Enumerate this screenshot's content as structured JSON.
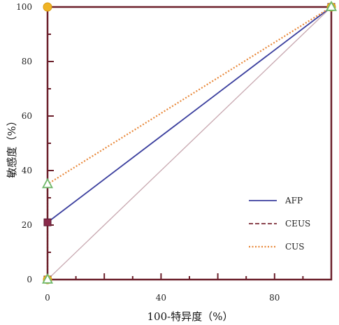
{
  "chart_data": {
    "type": "line",
    "xlabel": "100-特异度（%）",
    "ylabel": "敏感度（%）",
    "xlim": [
      0,
      100
    ],
    "ylim": [
      0,
      100
    ],
    "x_ticks": [
      "0",
      "40",
      "80"
    ],
    "y_ticks": [
      "0",
      "20",
      "40",
      "60",
      "80",
      "100"
    ],
    "grid": false,
    "legend_position": "lower-right",
    "reference_line": {
      "x": [
        0,
        100
      ],
      "y": [
        0,
        100
      ],
      "color": "#c8a8b0"
    },
    "series": [
      {
        "name": "AFP",
        "color": "#3b3f9e",
        "style": "solid",
        "marker": "square",
        "marker_color": "#8a2a4a",
        "points": [
          [
            0,
            0
          ],
          [
            0,
            21
          ],
          [
            100,
            100
          ]
        ]
      },
      {
        "name": "CEUS",
        "color": "#7a2a34",
        "style": "dashed",
        "marker": "circle",
        "marker_color": "#f0b424",
        "points": [
          [
            0,
            0
          ],
          [
            0,
            100
          ],
          [
            100,
            100
          ]
        ]
      },
      {
        "name": "CUS",
        "color": "#e8883a",
        "style": "dotted",
        "marker": "triangle",
        "marker_color": "#6fb86a",
        "points": [
          [
            0,
            0
          ],
          [
            0,
            35
          ],
          [
            100,
            100
          ]
        ]
      }
    ]
  }
}
